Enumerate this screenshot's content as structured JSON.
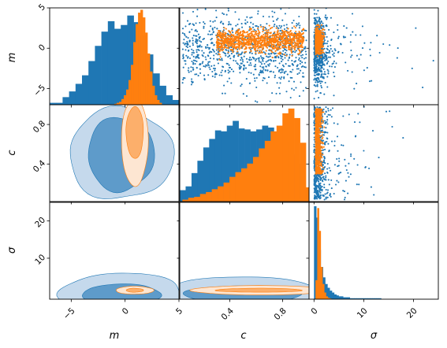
{
  "chart_data": {
    "type": "corner",
    "parameters": [
      "m",
      "c",
      "σ"
    ],
    "axis_labels": {
      "m": "m",
      "c": "c",
      "sigma": "σ"
    },
    "ranges": {
      "m": [
        -7,
        5
      ],
      "c": [
        0.02,
        1.0
      ],
      "sigma": [
        -1,
        25
      ]
    },
    "ticks": {
      "m": [
        -5,
        0,
        5
      ],
      "c": [
        0.4,
        0.8
      ],
      "sigma_x": [
        0,
        10,
        20
      ],
      "sigma_y": [
        10,
        20
      ]
    },
    "tick_labels": {
      "m": [
        "−5",
        "0",
        "5"
      ],
      "c": [
        "0.4",
        "0.8"
      ],
      "sigma_x": [
        "0",
        "10",
        "20"
      ],
      "sigma_y": [
        "10",
        "20"
      ]
    },
    "y_tick_labels_m": [
      "5",
      "0",
      "−5"
    ],
    "colors": {
      "blue": "#1f77b4",
      "orange": "#ff7f0e",
      "blue_fill": "#c5d9ec",
      "blue_mid": "#5e9bca",
      "orange_fill": "#fde6d2",
      "orange_mid": "#fcaf6b"
    },
    "series": [
      {
        "color": "#1f77b4",
        "m_hist": {
          "edges_start": -7,
          "bin_width": 0.6,
          "heights": [
            0.02,
            0.02,
            0.08,
            0.14,
            0.22,
            0.31,
            0.46,
            0.62,
            0.77,
            0.88,
            0.8,
            0.84,
            0.94,
            0.87,
            0.73,
            0.53,
            0.33,
            0.2,
            0.1,
            0.05
          ]
        },
        "c_hist": {
          "edges_start": 0.02,
          "bin_width": 0.0446,
          "heights": [
            0.12,
            0.16,
            0.3,
            0.43,
            0.57,
            0.66,
            0.75,
            0.74,
            0.8,
            0.85,
            0.77,
            0.76,
            0.74,
            0.76,
            0.8,
            0.78,
            0.72,
            0.68,
            0.62,
            0.5,
            0.4,
            0.12
          ]
        },
        "sigma_hist": {
          "edges_start": 0,
          "bin_width": 0.45,
          "heights": [
            0.98,
            0.86,
            0.52,
            0.34,
            0.23,
            0.16,
            0.12,
            0.09,
            0.07,
            0.05,
            0.04,
            0.03,
            0.03,
            0.02,
            0.02,
            0.02,
            0.01,
            0.01,
            0.01,
            0.01,
            0.01,
            0.01,
            0.01,
            0.01,
            0.01,
            0.01,
            0.01,
            0.01,
            0.01,
            0.01
          ]
        }
      },
      {
        "color": "#ff7f0e",
        "m_hist": {
          "edges_start": -1.0,
          "bin_width": 0.22,
          "heights": [
            0.01,
            0.02,
            0.03,
            0.06,
            0.1,
            0.16,
            0.26,
            0.42,
            0.66,
            0.85,
            0.97,
            1.0,
            0.92,
            0.76,
            0.54,
            0.35,
            0.2,
            0.1,
            0.05,
            0.02
          ]
        },
        "c_hist": {
          "edges_start": 0.04,
          "bin_width": 0.0446,
          "heights": [
            0.02,
            0.04,
            0.05,
            0.08,
            0.1,
            0.13,
            0.16,
            0.2,
            0.26,
            0.31,
            0.35,
            0.4,
            0.47,
            0.56,
            0.64,
            0.74,
            0.8,
            0.93,
            0.98,
            0.88,
            0.62,
            0.15
          ]
        },
        "sigma_hist": {
          "edges_start": 0.3,
          "bin_width": 0.35,
          "heights": [
            0.2,
            0.96,
            0.72,
            0.34,
            0.16,
            0.07,
            0.03,
            0.015,
            0.008
          ]
        }
      }
    ]
  }
}
